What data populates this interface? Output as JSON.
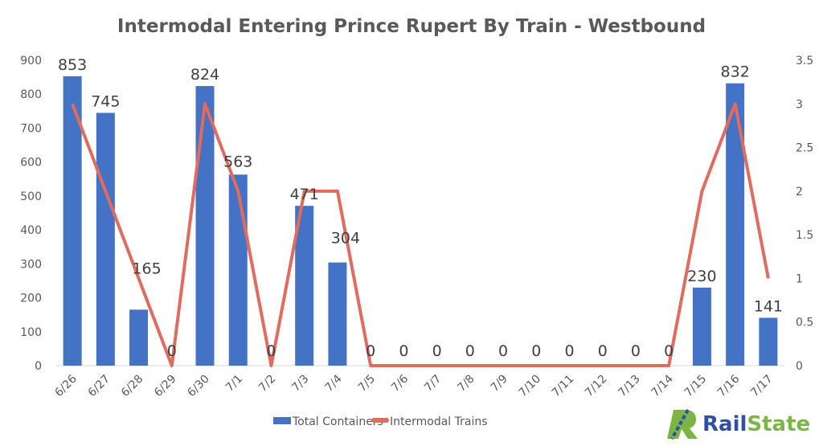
{
  "chart_data": {
    "type": "bar+line",
    "title": "Intermodal Entering Prince Rupert By Train - Westbound",
    "categories": [
      "6/26",
      "6/27",
      "6/28",
      "6/29",
      "6/30",
      "7/1",
      "7/2",
      "7/3",
      "7/4",
      "7/5",
      "7/6",
      "7/7",
      "7/8",
      "7/9",
      "7/10",
      "7/11",
      "7/12",
      "7/13",
      "7/14",
      "7/15",
      "7/16",
      "7/17"
    ],
    "series": [
      {
        "name": "Total Containers",
        "type": "bar",
        "axis": "left",
        "color": "#4472C4",
        "values": [
          853,
          745,
          165,
          0,
          824,
          563,
          0,
          471,
          304,
          0,
          0,
          0,
          0,
          0,
          0,
          0,
          0,
          0,
          0,
          230,
          832,
          141
        ]
      },
      {
        "name": "Intermodal Trains",
        "type": "line",
        "axis": "right",
        "color": "#E06C5F",
        "values": [
          3,
          2,
          1,
          0,
          3,
          2,
          0,
          2,
          2,
          0,
          0,
          0,
          0,
          0,
          0,
          0,
          0,
          0,
          0,
          2,
          3,
          1
        ]
      }
    ],
    "ylim_left": [
      0,
      900
    ],
    "yticks_left": [
      "0",
      "100",
      "200",
      "300",
      "400",
      "500",
      "600",
      "700",
      "800",
      "900"
    ],
    "ylim_right": [
      0,
      3.5
    ],
    "yticks_right": [
      "0",
      "0.5",
      "1",
      "1.5",
      "2",
      "2.5",
      "3",
      "3.5"
    ],
    "grid": false,
    "legend": "bottom"
  },
  "logo": {
    "text": "RailState",
    "colors": [
      "#2E4FA3",
      "#7DB544"
    ]
  }
}
